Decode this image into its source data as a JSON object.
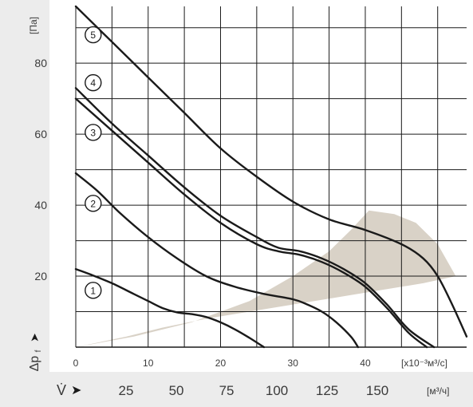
{
  "chart_data": {
    "type": "line",
    "title": "",
    "colors": {
      "background_band": "#ececec",
      "operating_region": "#d9d2c7",
      "lines": "#1a1a1a"
    },
    "y_axis": {
      "unit": "[Па]",
      "label_main": "Δp",
      "label_sub": "f",
      "arrow": "➤",
      "range": [
        0,
        96
      ],
      "ticks": [
        20,
        40,
        60,
        80
      ],
      "grid": [
        10,
        20,
        30,
        40,
        50,
        60,
        70,
        80,
        90
      ]
    },
    "x_axis": {
      "unit": "[x10⁻³м³/с]",
      "range": [
        0,
        54
      ],
      "ticks": [
        0,
        10,
        20,
        30,
        40
      ],
      "grid": [
        0,
        5,
        10,
        15,
        20,
        25,
        30,
        35,
        40,
        45,
        50
      ]
    },
    "x2_axis": {
      "unit": "[м³/ч]",
      "label": "V̇",
      "arrow": "➤",
      "ticks": [
        25,
        50,
        75,
        100,
        125,
        150
      ]
    },
    "series": [
      {
        "name": "1",
        "x": [
          0,
          2,
          5,
          8,
          10,
          12,
          14,
          16,
          18,
          20,
          22,
          24,
          26
        ],
        "y": [
          22,
          20.5,
          18,
          15,
          13,
          11,
          9.8,
          9.3,
          8.5,
          7,
          5,
          2.6,
          0
        ]
      },
      {
        "name": "2",
        "x": [
          0,
          3,
          6,
          10,
          14,
          18,
          22,
          26,
          30,
          32,
          34,
          36,
          38,
          39
        ],
        "y": [
          49,
          44,
          38,
          31,
          25,
          20,
          17,
          15,
          13.5,
          12,
          10,
          7,
          3,
          0
        ]
      },
      {
        "name": "3",
        "x": [
          0,
          5,
          10,
          15,
          20,
          25,
          28,
          31,
          34,
          37,
          40,
          43,
          46,
          48.5
        ],
        "y": [
          70,
          61,
          52,
          43,
          35,
          29,
          27,
          26,
          24,
          21,
          17,
          11,
          4,
          0
        ]
      },
      {
        "name": "4",
        "x": [
          0,
          5,
          10,
          15,
          20,
          25,
          28,
          31,
          34,
          37,
          40,
          43,
          46,
          49.5
        ],
        "y": [
          73,
          63,
          54,
          45,
          37,
          31,
          28,
          27,
          25,
          22,
          18,
          12,
          5,
          0
        ]
      },
      {
        "name": "5",
        "x": [
          0,
          5,
          10,
          15,
          20,
          25,
          30,
          35,
          40,
          45,
          48,
          50,
          52,
          54
        ],
        "y": [
          96,
          86,
          76,
          66,
          56,
          48,
          41,
          36,
          33,
          29,
          25,
          20,
          12,
          3
        ]
      }
    ],
    "operating_region": {
      "upper": {
        "x": [
          0,
          8,
          16,
          24,
          30,
          35,
          38,
          40.5,
          44,
          47,
          50,
          52.5
        ],
        "y": [
          0,
          3,
          7,
          13,
          20,
          27,
          33,
          38.5,
          37.5,
          35,
          29,
          20
        ]
      },
      "lower": {
        "x": [
          52.5,
          48,
          42,
          36,
          30,
          24,
          18,
          12,
          7,
          0
        ],
        "y": [
          20,
          18,
          16,
          14,
          12,
          10,
          8,
          5.5,
          3,
          0
        ]
      }
    },
    "curve_labels": [
      {
        "text": "1",
        "x": 2.4,
        "y": 16
      },
      {
        "text": "2",
        "x": 2.4,
        "y": 40.5
      },
      {
        "text": "3",
        "x": 2.4,
        "y": 60.5
      },
      {
        "text": "4",
        "x": 2.4,
        "y": 74.5
      },
      {
        "text": "5",
        "x": 2.4,
        "y": 88
      }
    ]
  }
}
